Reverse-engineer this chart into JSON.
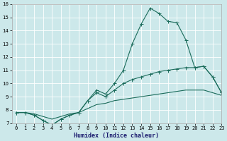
{
  "title": "",
  "xlabel": "Humidex (Indice chaleur)",
  "xlim": [
    -0.5,
    23
  ],
  "ylim": [
    7,
    16
  ],
  "xticks": [
    0,
    1,
    2,
    3,
    4,
    5,
    6,
    7,
    8,
    9,
    10,
    11,
    12,
    13,
    14,
    15,
    16,
    17,
    18,
    19,
    20,
    21,
    22,
    23
  ],
  "yticks": [
    7,
    8,
    9,
    10,
    11,
    12,
    13,
    14,
    15,
    16
  ],
  "bg_color": "#cce8ea",
  "grid_color": "#ffffff",
  "line_color": "#1a6b5a",
  "line1_x": [
    0,
    1,
    2,
    3,
    4,
    5,
    6,
    7,
    8,
    9,
    10,
    11,
    12,
    13,
    14,
    15,
    16,
    17,
    18,
    19,
    20,
    21,
    22,
    23
  ],
  "line1_y": [
    7.8,
    7.8,
    7.6,
    7.2,
    6.85,
    7.3,
    7.6,
    7.8,
    8.7,
    9.5,
    9.2,
    10.0,
    11.0,
    13.0,
    14.5,
    15.7,
    15.3,
    14.7,
    14.6,
    13.3,
    11.2,
    11.3,
    10.5,
    9.3
  ],
  "line2_x": [
    0,
    1,
    2,
    3,
    4,
    5,
    6,
    7,
    8,
    9,
    10,
    11,
    12,
    13,
    14,
    15,
    16,
    17,
    18,
    19,
    20,
    21,
    22,
    23
  ],
  "line2_y": [
    7.8,
    7.8,
    7.6,
    7.2,
    6.85,
    7.3,
    7.6,
    7.8,
    8.7,
    9.3,
    9.0,
    9.5,
    10.0,
    10.3,
    10.5,
    10.7,
    10.9,
    11.0,
    11.1,
    11.2,
    11.2,
    11.3,
    10.5,
    9.3
  ],
  "line3_x": [
    0,
    1,
    2,
    3,
    4,
    5,
    6,
    7,
    8,
    9,
    10,
    11,
    12,
    13,
    14,
    15,
    16,
    17,
    18,
    19,
    20,
    21,
    22,
    23
  ],
  "line3_y": [
    7.8,
    7.8,
    7.7,
    7.5,
    7.3,
    7.5,
    7.7,
    7.8,
    8.1,
    8.4,
    8.5,
    8.7,
    8.8,
    8.9,
    9.0,
    9.1,
    9.2,
    9.3,
    9.4,
    9.5,
    9.5,
    9.5,
    9.3,
    9.1
  ],
  "xlabel_color": "#1a1a6e",
  "xlabel_fontsize": 6.0,
  "tick_fontsize": 5.0,
  "marker_size": 2.0,
  "linewidth": 0.8
}
